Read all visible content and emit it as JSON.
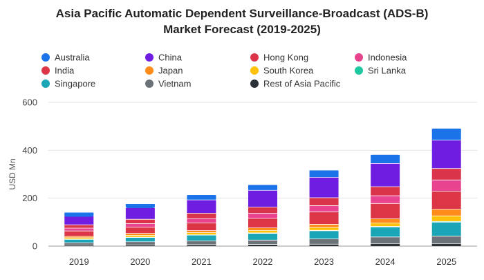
{
  "chart_data": {
    "type": "bar",
    "stacked": true,
    "title": "Asia Pacific Automatic Dependent Surveillance-Broadcast (ADS-B) Market Forecast (2019-2025)",
    "title_lines": [
      "Asia Pacific Automatic Dependent Surveillance-Broadcast (ADS-B)",
      "Market Forecast (2019-2025)"
    ],
    "xlabel": "",
    "ylabel": "USD Mn",
    "ylim": [
      0,
      600
    ],
    "yticks": [
      0,
      200,
      400,
      600
    ],
    "grid": true,
    "legend_position": "top",
    "categories": [
      "2019",
      "2020",
      "2021",
      "2022",
      "2023",
      "2024",
      "2025"
    ],
    "series": [
      {
        "name": "Rest of Asia Pacific",
        "color": "#2c3138",
        "values": [
          4,
          5,
          6,
          7,
          8,
          10,
          10
        ]
      },
      {
        "name": "Vietnam",
        "color": "#6b7378",
        "values": [
          10,
          13,
          16,
          18,
          22,
          28,
          32
        ]
      },
      {
        "name": "Singapore",
        "color": "#1aa6b7",
        "values": [
          14,
          18,
          24,
          28,
          34,
          42,
          58
        ]
      },
      {
        "name": "Sri Lanka",
        "color": "#1fc8a0",
        "values": [
          1,
          1,
          1,
          2,
          2,
          2,
          3
        ]
      },
      {
        "name": "South Korea",
        "color": "#ffc107",
        "values": [
          6,
          8,
          9,
          10,
          12,
          14,
          23
        ]
      },
      {
        "name": "Japan",
        "color": "#ff8c1a",
        "values": [
          6,
          8,
          9,
          11,
          13,
          18,
          28
        ]
      },
      {
        "name": "India",
        "color": "#dc3545",
        "values": [
          22,
          26,
          32,
          40,
          52,
          64,
          75
        ]
      },
      {
        "name": "Indonesia",
        "color": "#e8438e",
        "values": [
          12,
          15,
          18,
          21,
          26,
          32,
          47
        ]
      },
      {
        "name": "Hong Kong",
        "color": "#d9344a",
        "values": [
          14,
          18,
          22,
          26,
          33,
          38,
          48
        ]
      },
      {
        "name": "China",
        "color": "#6f1de0",
        "values": [
          38,
          48,
          56,
          70,
          85,
          97,
          118
        ]
      },
      {
        "name": "Australia",
        "color": "#1a73e8",
        "values": [
          13,
          16,
          20,
          22,
          29,
          36,
          48
        ]
      }
    ],
    "legend_order": [
      "Australia",
      "China",
      "Hong Kong",
      "Indonesia",
      "India",
      "Japan",
      "South Korea",
      "Sri Lanka",
      "Singapore",
      "Vietnam",
      "Rest of Asia Pacific"
    ]
  }
}
